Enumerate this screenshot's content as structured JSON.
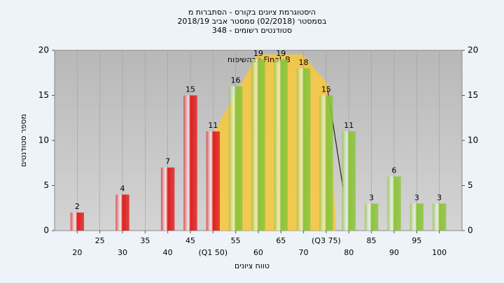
{
  "chart_data": {
    "type": "bar",
    "title": "היסטוגרמת ציונים בקורס - הסתברות מ",
    "subtitle": "בסמסטר (02/2018) סמסטר אביב 2018/19",
    "subtitle2": "סטודנטים רשומים - 348",
    "y_label": "מספר סטודנטים",
    "x_label": "טווח ציונים",
    "annotation": "בהשיפוח : Final_B",
    "x": [
      20,
      25,
      30,
      35,
      40,
      45,
      50,
      55,
      60,
      65,
      70,
      75,
      80,
      85,
      90,
      95,
      100
    ],
    "values": [
      2,
      0,
      4,
      0,
      7,
      15,
      11,
      16,
      19,
      19,
      18,
      15,
      11,
      3,
      6,
      3,
      3
    ],
    "colors": [
      "#e02020",
      "#e02020",
      "#e02020",
      "#e02020",
      "#e02020",
      "#e02020",
      "#e02020",
      "#8cc43c",
      "#8cc43c",
      "#8cc43c",
      "#8cc43c",
      "#8cc43c",
      "#8cc43c",
      "#8cc43c",
      "#8cc43c",
      "#8cc43c",
      "#8cc43c"
    ],
    "xlim": [
      15,
      105
    ],
    "xticks": [
      20,
      25,
      30,
      35,
      40,
      45,
      {
        "value": 50,
        "label": "(Q1 50)"
      },
      55,
      60,
      65,
      70,
      {
        "value": 75,
        "label": "(Q3 75)"
      },
      80,
      85,
      90,
      95,
      100
    ],
    "ylim": [
      0,
      20
    ],
    "yticks": [
      0,
      5,
      10,
      15,
      20
    ],
    "y2lim": [
      0,
      20
    ],
    "y2ticks": [
      0,
      5,
      10,
      15,
      20
    ],
    "grid": true
  }
}
